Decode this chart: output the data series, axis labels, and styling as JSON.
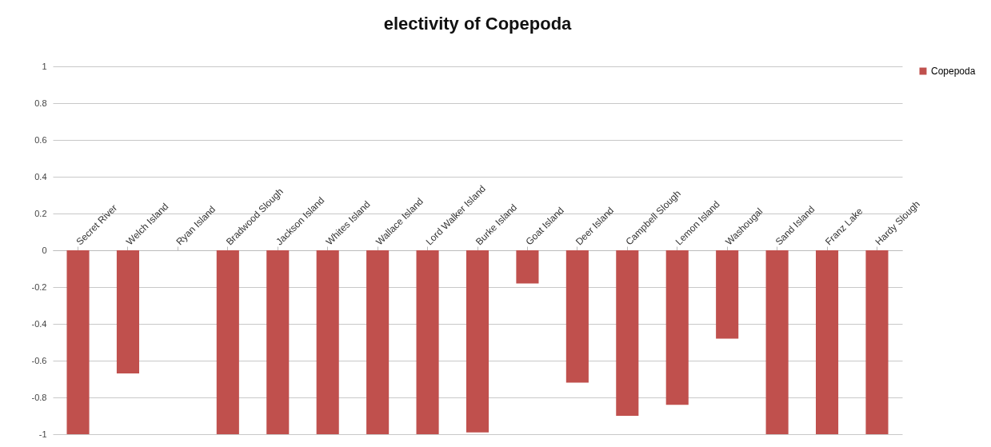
{
  "chart_data": {
    "type": "bar",
    "title": "electivity of Copepoda",
    "categories": [
      "Secret River",
      "Welch Island",
      "Ryan Island",
      "Bradwood Slough",
      "Jackson Island",
      "Whites Island",
      "Wallace Island",
      "Lord Walker Island",
      "Burke Island",
      "Goat Island",
      "Deer Island",
      "Campbell Slough",
      "Lemon Island",
      "Washougal",
      "Sand Island",
      "Franz Lake",
      "Hardy Slough"
    ],
    "series": [
      {
        "name": "Copepoda",
        "color": "#c0504d",
        "values": [
          -1,
          -0.67,
          null,
          -1,
          -1,
          -1,
          -1,
          -1,
          -0.99,
          -0.18,
          -0.72,
          -0.9,
          -0.84,
          -0.48,
          -1,
          -1,
          -1
        ]
      }
    ],
    "ylim": [
      -1,
      1
    ],
    "yticks": [
      -1,
      -0.8,
      -0.6,
      -0.4,
      -0.2,
      0,
      0.2,
      0.4,
      0.6,
      0.8,
      1
    ],
    "grid": "y",
    "legend": "right"
  }
}
